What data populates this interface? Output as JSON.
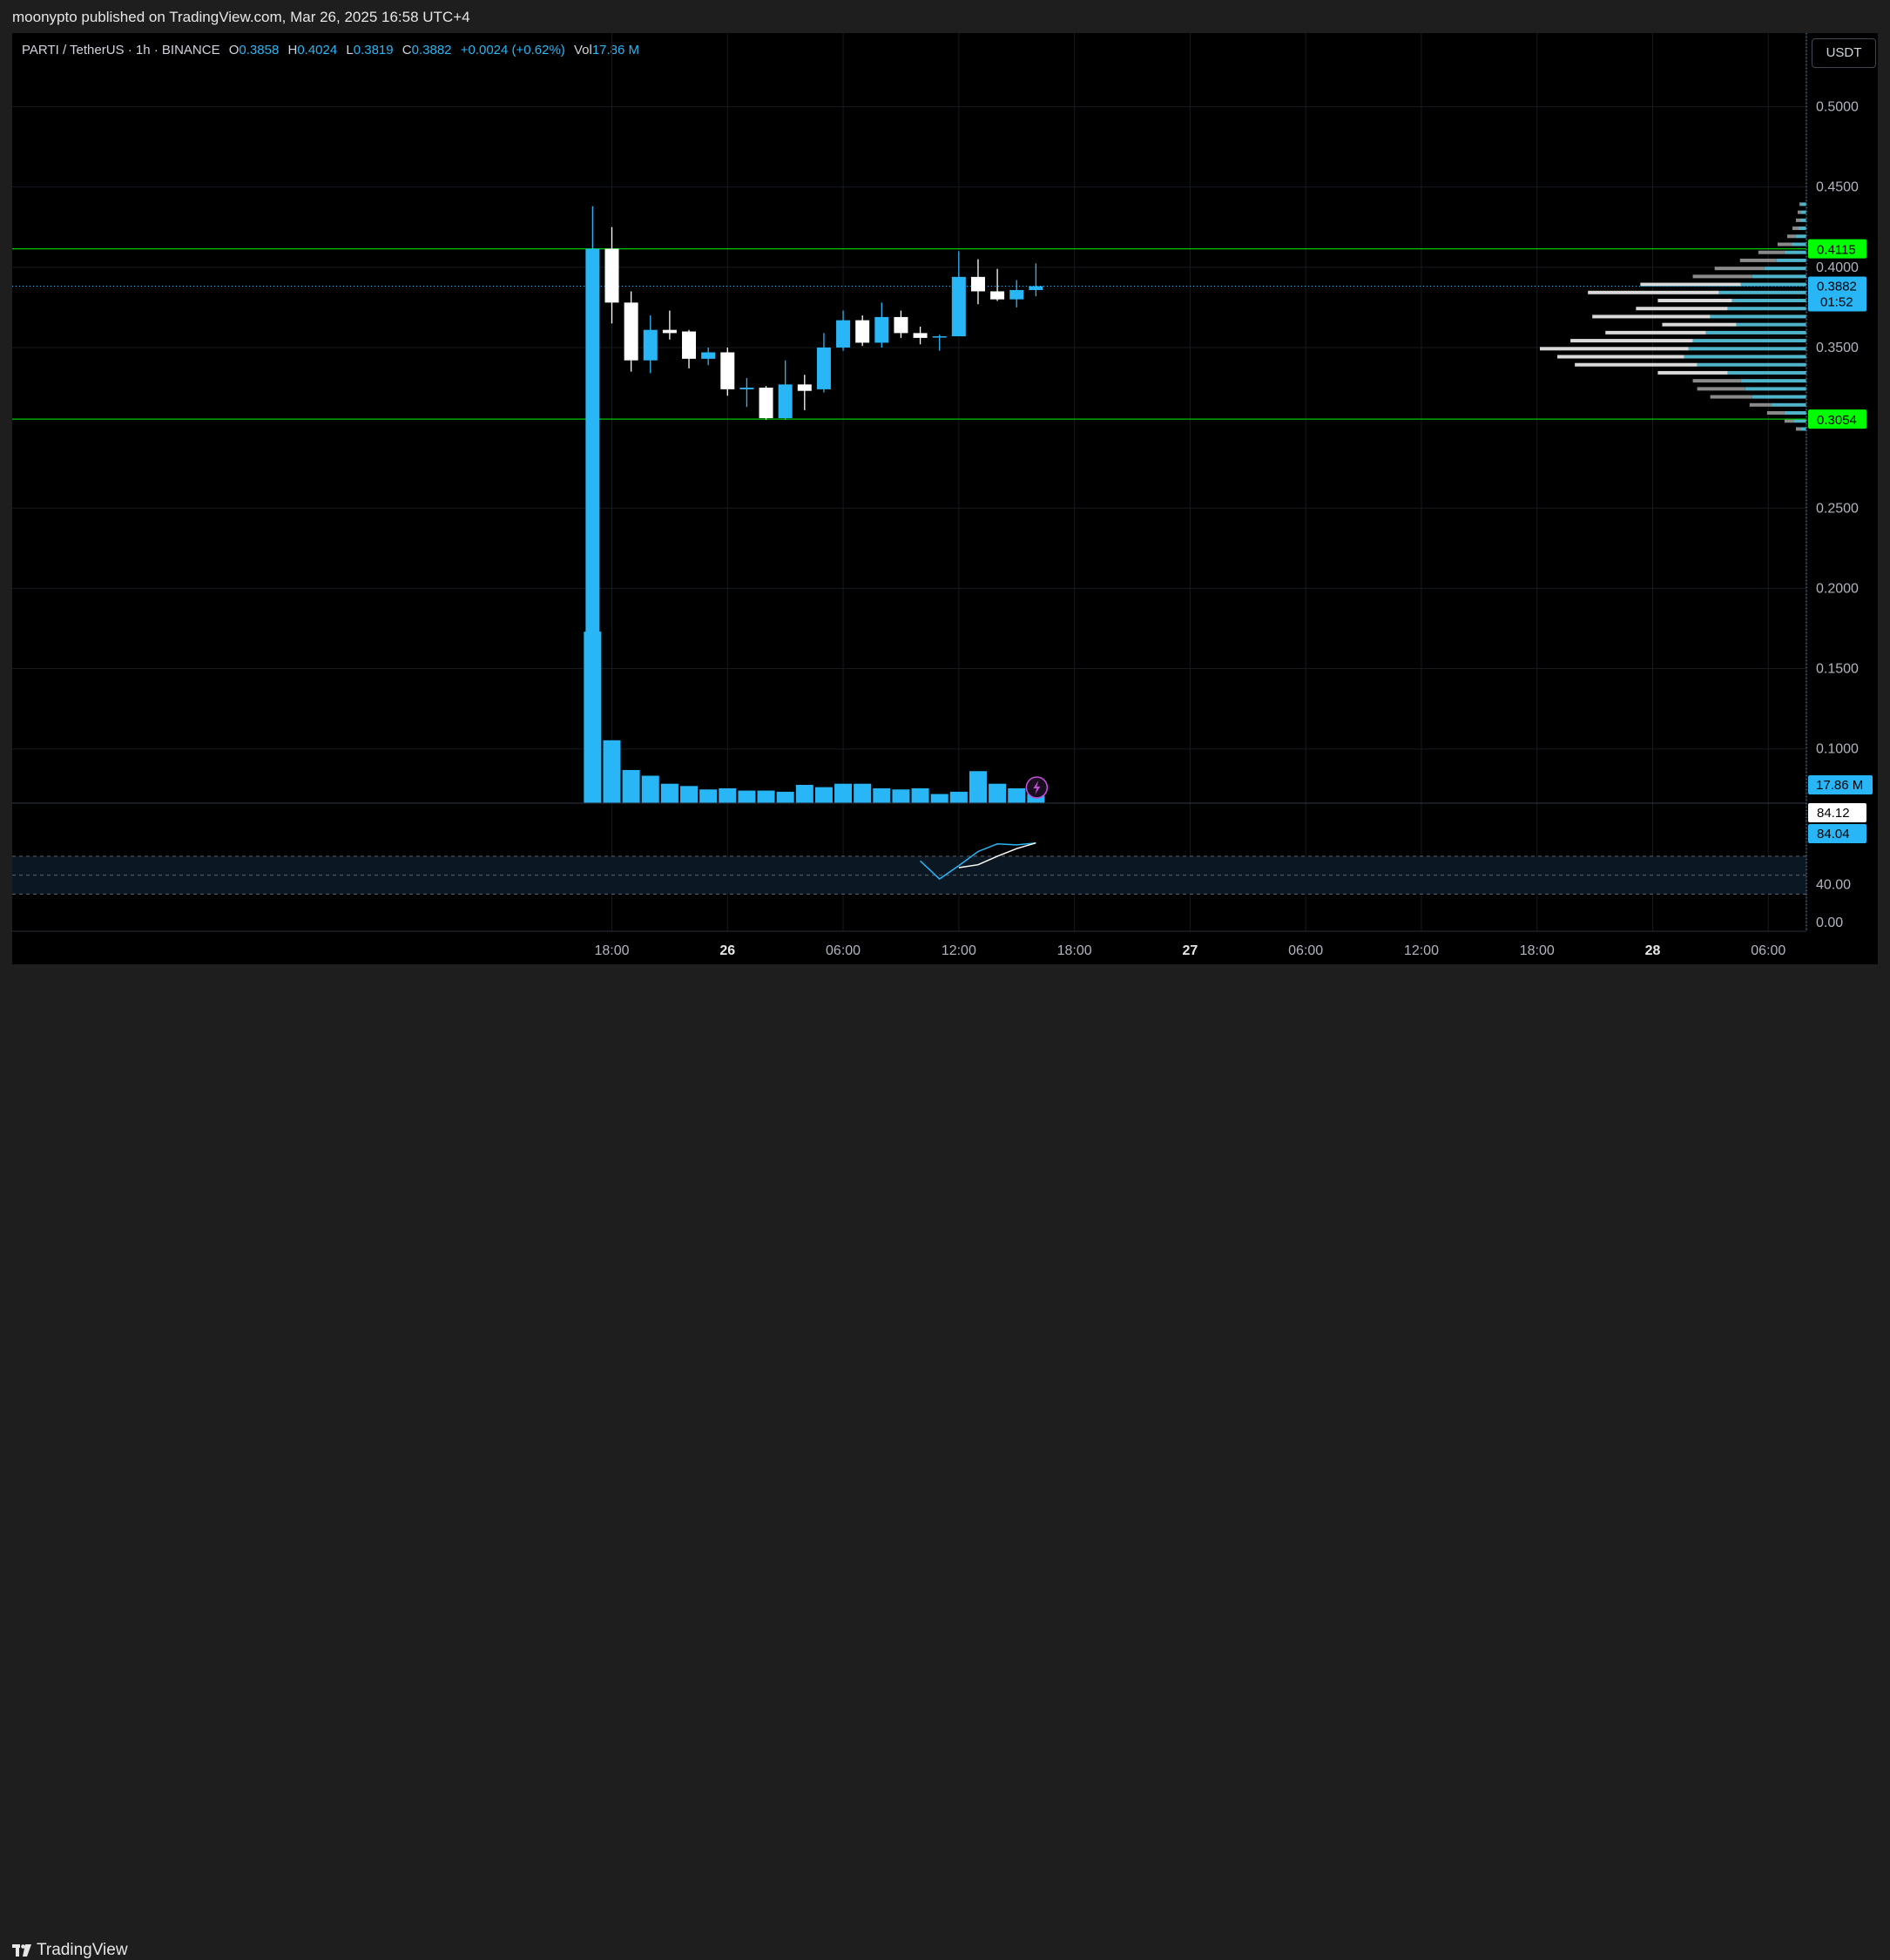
{
  "header": {
    "publisher_text": "moonypto published on TradingView.com, Mar 26, 2025 16:58 UTC+4"
  },
  "legend": {
    "symbol": "PARTI / TetherUS · 1h · BINANCE",
    "o_label": "O",
    "o_value": "0.3858",
    "h_label": "H",
    "h_value": "0.4024",
    "l_label": "L",
    "l_value": "0.3819",
    "c_label": "C",
    "c_value": "0.3882",
    "change": "+0.0024 (+0.62%)",
    "vol_label": "Vol",
    "vol_value": "17.86 M"
  },
  "currency_button": "USDT",
  "footer": {
    "brand": "TradingView"
  },
  "colors": {
    "up": "#29b6f6",
    "down": "#ffffff",
    "level_line": "#00c805",
    "level_label_bg": "#00ff00",
    "grid": "#161a1e",
    "axis_text": "#b2b5be",
    "rsi_band": "#0b1824",
    "rsi_line": "#29b6f6",
    "rsi_ma_line": "#ffffff"
  },
  "chart_data": {
    "type": "candlestick",
    "symbol": "PARTI / TetherUS",
    "interval": "1h",
    "exchange": "BINANCE",
    "y_ticks": [
      "0.5000",
      "0.4500",
      "0.4000",
      "0.3500",
      "0.2500",
      "0.2000",
      "0.1500",
      "0.1000"
    ],
    "x_ticks": [
      {
        "label": "18:00",
        "t": 0,
        "bold": false
      },
      {
        "label": "26",
        "t": 6,
        "bold": true
      },
      {
        "label": "06:00",
        "t": 12,
        "bold": false
      },
      {
        "label": "12:00",
        "t": 18,
        "bold": false
      },
      {
        "label": "18:00",
        "t": 24,
        "bold": false
      },
      {
        "label": "27",
        "t": 30,
        "bold": true
      },
      {
        "label": "06:00",
        "t": 36,
        "bold": false
      },
      {
        "label": "12:00",
        "t": 42,
        "bold": false
      },
      {
        "label": "18:00",
        "t": 48,
        "bold": false
      },
      {
        "label": "28",
        "t": 54,
        "bold": true
      },
      {
        "label": "06:00",
        "t": 60,
        "bold": false
      }
    ],
    "candles": [
      {
        "t": -1,
        "o": 0.07,
        "h": 0.438,
        "l": 0.07,
        "c": 0.4115
      },
      {
        "t": 0,
        "o": 0.4115,
        "h": 0.425,
        "l": 0.365,
        "c": 0.378
      },
      {
        "t": 1,
        "o": 0.378,
        "h": 0.385,
        "l": 0.335,
        "c": 0.342
      },
      {
        "t": 2,
        "o": 0.342,
        "h": 0.37,
        "l": 0.334,
        "c": 0.361
      },
      {
        "t": 3,
        "o": 0.361,
        "h": 0.373,
        "l": 0.355,
        "c": 0.359
      },
      {
        "t": 4,
        "o": 0.36,
        "h": 0.361,
        "l": 0.337,
        "c": 0.343
      },
      {
        "t": 5,
        "o": 0.343,
        "h": 0.35,
        "l": 0.339,
        "c": 0.347
      },
      {
        "t": 6,
        "o": 0.347,
        "h": 0.35,
        "l": 0.32,
        "c": 0.324
      },
      {
        "t": 7,
        "o": 0.324,
        "h": 0.331,
        "l": 0.313,
        "c": 0.325
      },
      {
        "t": 8,
        "o": 0.325,
        "h": 0.326,
        "l": 0.305,
        "c": 0.306
      },
      {
        "t": 9,
        "o": 0.306,
        "h": 0.342,
        "l": 0.305,
        "c": 0.327
      },
      {
        "t": 10,
        "o": 0.327,
        "h": 0.333,
        "l": 0.311,
        "c": 0.323
      },
      {
        "t": 11,
        "o": 0.324,
        "h": 0.359,
        "l": 0.322,
        "c": 0.35
      },
      {
        "t": 12,
        "o": 0.35,
        "h": 0.373,
        "l": 0.348,
        "c": 0.367
      },
      {
        "t": 13,
        "o": 0.367,
        "h": 0.37,
        "l": 0.351,
        "c": 0.353
      },
      {
        "t": 14,
        "o": 0.353,
        "h": 0.378,
        "l": 0.35,
        "c": 0.369
      },
      {
        "t": 15,
        "o": 0.369,
        "h": 0.373,
        "l": 0.356,
        "c": 0.359
      },
      {
        "t": 16,
        "o": 0.359,
        "h": 0.363,
        "l": 0.352,
        "c": 0.356
      },
      {
        "t": 17,
        "o": 0.357,
        "h": 0.358,
        "l": 0.348,
        "c": 0.357
      },
      {
        "t": 18,
        "o": 0.357,
        "h": 0.41,
        "l": 0.357,
        "c": 0.394
      },
      {
        "t": 19,
        "o": 0.394,
        "h": 0.405,
        "l": 0.377,
        "c": 0.385
      },
      {
        "t": 20,
        "o": 0.385,
        "h": 0.399,
        "l": 0.379,
        "c": 0.38
      },
      {
        "t": 21,
        "o": 0.38,
        "h": 0.392,
        "l": 0.375,
        "c": 0.3858
      },
      {
        "t": 22,
        "o": 0.3858,
        "h": 0.4024,
        "l": 0.3819,
        "c": 0.3882
      }
    ],
    "volume": [
      {
        "t": -1,
        "v": 150,
        "up": true
      },
      {
        "t": 0,
        "v": 55,
        "up": true
      },
      {
        "t": 1,
        "v": 29,
        "up": true
      },
      {
        "t": 2,
        "v": 24,
        "up": true
      },
      {
        "t": 3,
        "v": 17,
        "up": true
      },
      {
        "t": 4,
        "v": 15,
        "up": true
      },
      {
        "t": 5,
        "v": 12,
        "up": true
      },
      {
        "t": 6,
        "v": 13,
        "up": true
      },
      {
        "t": 7,
        "v": 11,
        "up": true
      },
      {
        "t": 8,
        "v": 11,
        "up": true
      },
      {
        "t": 9,
        "v": 10,
        "up": true
      },
      {
        "t": 10,
        "v": 16,
        "up": true
      },
      {
        "t": 11,
        "v": 14,
        "up": true
      },
      {
        "t": 12,
        "v": 17,
        "up": true
      },
      {
        "t": 13,
        "v": 17,
        "up": true
      },
      {
        "t": 14,
        "v": 13,
        "up": true
      },
      {
        "t": 15,
        "v": 12,
        "up": true
      },
      {
        "t": 16,
        "v": 13,
        "up": true
      },
      {
        "t": 17,
        "v": 8,
        "up": true
      },
      {
        "t": 18,
        "v": 10,
        "up": true
      },
      {
        "t": 19,
        "v": 28,
        "up": true
      },
      {
        "t": 20,
        "v": 17,
        "up": true
      },
      {
        "t": 21,
        "v": 13,
        "up": true
      },
      {
        "t": 22,
        "v": 8,
        "up": true
      }
    ],
    "volume_ylim": [
      0,
      160
    ],
    "volume_label": "17.86 M",
    "current_price": {
      "value": 0.3882,
      "label": "0.3882",
      "countdown": "01:52"
    },
    "levels": [
      {
        "value": 0.4115,
        "label": "0.4115"
      },
      {
        "value": 0.3054,
        "label": "0.3054"
      }
    ],
    "volume_profile": [
      {
        "p": 0.439,
        "total": 0.008,
        "up": 0.006
      },
      {
        "p": 0.434,
        "total": 0.01,
        "up": 0.006
      },
      {
        "p": 0.429,
        "total": 0.012,
        "up": 0.007
      },
      {
        "p": 0.424,
        "total": 0.016,
        "up": 0.009
      },
      {
        "p": 0.419,
        "total": 0.022,
        "up": 0.012
      },
      {
        "p": 0.414,
        "total": 0.033,
        "up": 0.017
      },
      {
        "p": 0.409,
        "total": 0.055,
        "up": 0.025
      },
      {
        "p": 0.404,
        "total": 0.076,
        "up": 0.034
      },
      {
        "p": 0.399,
        "total": 0.105,
        "up": 0.048
      },
      {
        "p": 0.394,
        "total": 0.13,
        "up": 0.062
      },
      {
        "p": 0.389,
        "total": 0.19,
        "up": 0.075
      },
      {
        "p": 0.384,
        "total": 0.25,
        "up": 0.1
      },
      {
        "p": 0.379,
        "total": 0.17,
        "up": 0.085
      },
      {
        "p": 0.374,
        "total": 0.195,
        "up": 0.09
      },
      {
        "p": 0.369,
        "total": 0.245,
        "up": 0.11
      },
      {
        "p": 0.364,
        "total": 0.165,
        "up": 0.08
      },
      {
        "p": 0.359,
        "total": 0.23,
        "up": 0.115
      },
      {
        "p": 0.354,
        "total": 0.27,
        "up": 0.13
      },
      {
        "p": 0.349,
        "total": 0.305,
        "up": 0.135
      },
      {
        "p": 0.344,
        "total": 0.285,
        "up": 0.14
      },
      {
        "p": 0.339,
        "total": 0.265,
        "up": 0.125
      },
      {
        "p": 0.334,
        "total": 0.17,
        "up": 0.09
      },
      {
        "p": 0.329,
        "total": 0.13,
        "up": 0.075
      },
      {
        "p": 0.324,
        "total": 0.125,
        "up": 0.07
      },
      {
        "p": 0.319,
        "total": 0.11,
        "up": 0.062
      },
      {
        "p": 0.314,
        "total": 0.065,
        "up": 0.04
      },
      {
        "p": 0.309,
        "total": 0.045,
        "up": 0.025
      },
      {
        "p": 0.304,
        "total": 0.025,
        "up": 0.014
      },
      {
        "p": 0.299,
        "total": 0.012,
        "up": 0.006
      }
    ],
    "rsi": {
      "ticks": [
        "40.00",
        "0.00"
      ],
      "band": [
        30,
        70
      ],
      "mid": 50,
      "value_labels": [
        {
          "value": 84.12,
          "label": "84.12",
          "style": "white"
        },
        {
          "value": 84.04,
          "label": "84.04",
          "style": "blue"
        }
      ],
      "series": [
        {
          "name": "",
          "t": [
            16,
            17,
            18,
            19,
            20,
            21,
            22
          ],
          "values": [
            65,
            46,
            60,
            75,
            83,
            82,
            84
          ]
        },
        {
          "name": "",
          "t": [
            18,
            19,
            20,
            21,
            22
          ],
          "values": [
            58,
            61,
            70,
            78,
            84
          ]
        }
      ]
    },
    "icons": [
      {
        "name": "lightning-icon",
        "t": 22
      }
    ]
  }
}
